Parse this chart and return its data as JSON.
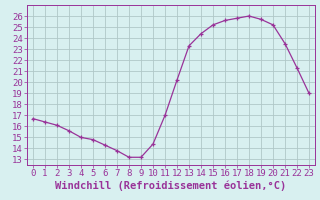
{
  "x": [
    0,
    1,
    2,
    3,
    4,
    5,
    6,
    7,
    8,
    9,
    10,
    11,
    12,
    13,
    14,
    15,
    16,
    17,
    18,
    19,
    20,
    21,
    22,
    23
  ],
  "y": [
    16.7,
    16.4,
    16.1,
    15.6,
    15.0,
    14.8,
    14.3,
    13.8,
    13.2,
    13.2,
    14.4,
    17.0,
    20.2,
    23.3,
    24.4,
    25.2,
    25.6,
    25.8,
    26.0,
    25.7,
    25.2,
    23.5,
    21.3,
    19.0
  ],
  "line_color": "#993399",
  "marker": "+",
  "marker_color": "#993399",
  "bg_color": "#d8f0f0",
  "grid_color": "#b0c8c8",
  "axis_color": "#993399",
  "xlabel": "Windchill (Refroidissement éolien,°C)",
  "xlim": [
    -0.5,
    23.5
  ],
  "ylim": [
    12.5,
    27.0
  ],
  "yticks": [
    13,
    14,
    15,
    16,
    17,
    18,
    19,
    20,
    21,
    22,
    23,
    24,
    25,
    26
  ],
  "xtick_labels": [
    "0",
    "1",
    "2",
    "3",
    "4",
    "5",
    "6",
    "7",
    "8",
    "9",
    "10",
    "11",
    "12",
    "13",
    "14",
    "15",
    "16",
    "17",
    "18",
    "19",
    "20",
    "21",
    "22",
    "23"
  ],
  "fontsize": 6.5,
  "xlabel_fontsize": 7.5
}
